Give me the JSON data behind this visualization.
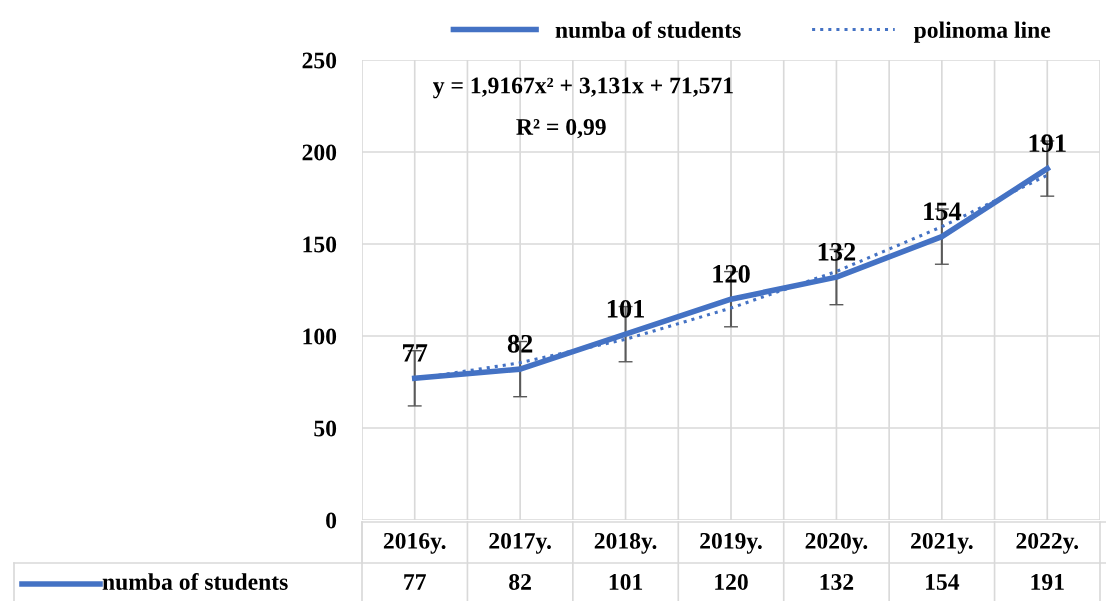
{
  "chart_data": {
    "type": "line",
    "categories": [
      "2016y.",
      "2017y.",
      "2018y.",
      "2019y.",
      "2020y.",
      "2021y.",
      "2022y."
    ],
    "series": [
      {
        "name": "numba of students",
        "color": "#4472c4",
        "values": [
          77,
          82,
          101,
          120,
          132,
          154,
          191
        ],
        "errors": [
          15,
          15,
          15,
          15,
          15,
          15,
          15
        ],
        "value_labels": [
          "77",
          "82",
          "101",
          "120",
          "132",
          "154",
          "191"
        ],
        "line_style": "solid"
      },
      {
        "name": "polinoma line",
        "color": "#4472c4",
        "values": [
          76.6,
          85.5,
          98.2,
          115.2,
          135.1,
          159.4,
          187.4
        ],
        "line_style": "dotted"
      }
    ],
    "ylim": [
      0,
      250
    ],
    "yticks": [
      0,
      50,
      100,
      150,
      200,
      250
    ],
    "grid": true,
    "legend": "top",
    "marker": "none",
    "annotations": [
      "y = 1,9167x² + 3,131x + 71,571",
      "R² = 0,99"
    ]
  }
}
